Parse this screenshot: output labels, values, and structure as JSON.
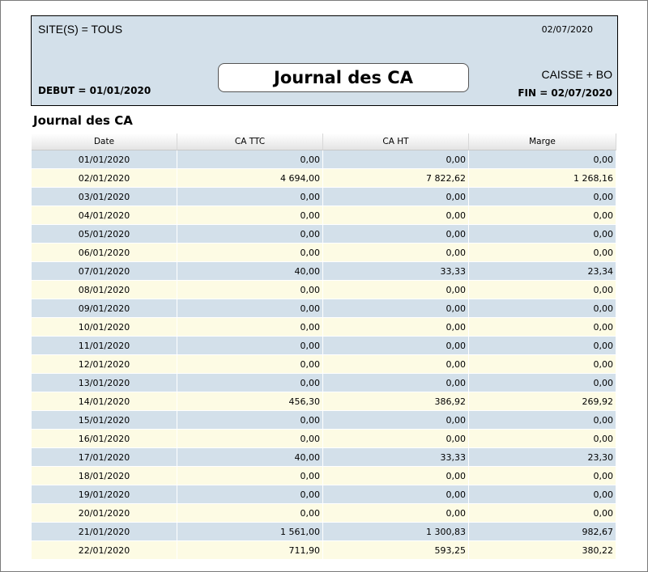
{
  "header": {
    "site": "SITE(S) = TOUS",
    "print_date": "02/07/2020",
    "title": "Journal des CA",
    "debut": "DEBUT = 01/01/2020",
    "mode": "CAISSE + BO",
    "fin": "FIN = 02/07/2020"
  },
  "section": {
    "title": "Journal des CA"
  },
  "table": {
    "columns": [
      "Date",
      "CA TTC",
      "CA HT",
      "Marge"
    ],
    "rows": [
      [
        "01/01/2020",
        "0,00",
        "0,00",
        "0,00"
      ],
      [
        "02/01/2020",
        "4 694,00",
        "7 822,62",
        "1 268,16"
      ],
      [
        "03/01/2020",
        "0,00",
        "0,00",
        "0,00"
      ],
      [
        "04/01/2020",
        "0,00",
        "0,00",
        "0,00"
      ],
      [
        "05/01/2020",
        "0,00",
        "0,00",
        "0,00"
      ],
      [
        "06/01/2020",
        "0,00",
        "0,00",
        "0,00"
      ],
      [
        "07/01/2020",
        "40,00",
        "33,33",
        "23,34"
      ],
      [
        "08/01/2020",
        "0,00",
        "0,00",
        "0,00"
      ],
      [
        "09/01/2020",
        "0,00",
        "0,00",
        "0,00"
      ],
      [
        "10/01/2020",
        "0,00",
        "0,00",
        "0,00"
      ],
      [
        "11/01/2020",
        "0,00",
        "0,00",
        "0,00"
      ],
      [
        "12/01/2020",
        "0,00",
        "0,00",
        "0,00"
      ],
      [
        "13/01/2020",
        "0,00",
        "0,00",
        "0,00"
      ],
      [
        "14/01/2020",
        "456,30",
        "386,92",
        "269,92"
      ],
      [
        "15/01/2020",
        "0,00",
        "0,00",
        "0,00"
      ],
      [
        "16/01/2020",
        "0,00",
        "0,00",
        "0,00"
      ],
      [
        "17/01/2020",
        "40,00",
        "33,33",
        "23,30"
      ],
      [
        "18/01/2020",
        "0,00",
        "0,00",
        "0,00"
      ],
      [
        "19/01/2020",
        "0,00",
        "0,00",
        "0,00"
      ],
      [
        "20/01/2020",
        "0,00",
        "0,00",
        "0,00"
      ],
      [
        "21/01/2020",
        "1 561,00",
        "1 300,83",
        "982,67"
      ],
      [
        "22/01/2020",
        "711,90",
        "593,25",
        "380,22"
      ]
    ]
  }
}
